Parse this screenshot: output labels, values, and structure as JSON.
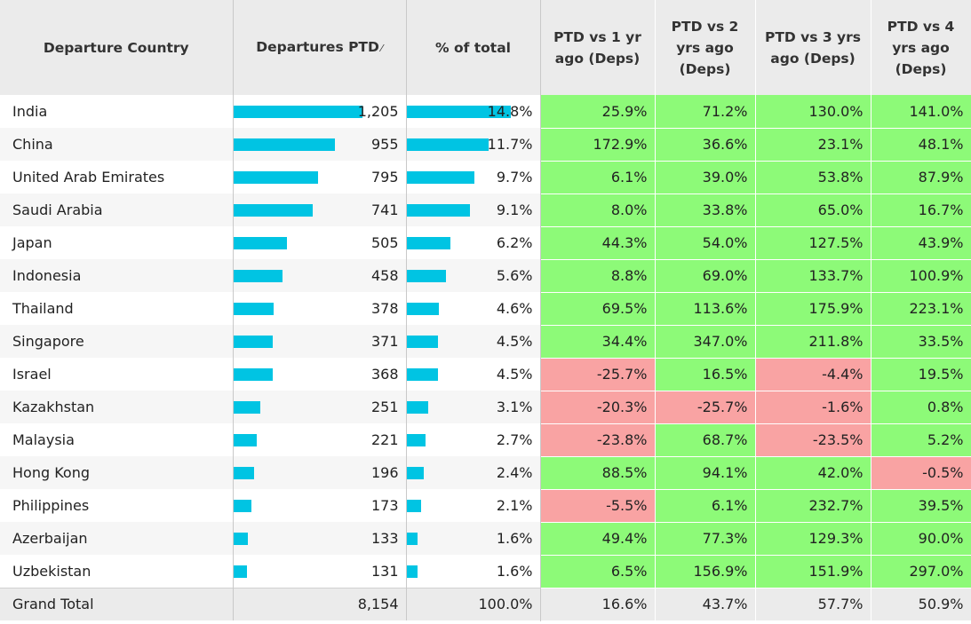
{
  "chart_data": {
    "type": "table",
    "columns": {
      "country": "Departure Country",
      "departures": "Departures PTD",
      "pct_total": "% of total",
      "vs1": "PTD vs 1 yr ago (Deps)",
      "vs2": "PTD vs 2 yrs ago (Deps)",
      "vs3": "PTD vs 3 yrs ago (Deps)",
      "vs4": "PTD vs 4 yrs ago (Deps)"
    },
    "colors": {
      "bar": "#00c4e3",
      "positive": "#8dfa78",
      "negative": "#f9a3a3",
      "header": "#ebebeb"
    },
    "rows": [
      {
        "country": "India",
        "departures": 1205,
        "departures_label": "1,205",
        "pct": 14.8,
        "pct_label": "14.8%",
        "vs1": "25.9%",
        "vs2": "71.2%",
        "vs3": "130.0%",
        "vs4": "141.0%"
      },
      {
        "country": "China",
        "departures": 955,
        "departures_label": "955",
        "pct": 11.7,
        "pct_label": "11.7%",
        "vs1": "172.9%",
        "vs2": "36.6%",
        "vs3": "23.1%",
        "vs4": "48.1%"
      },
      {
        "country": "United Arab Emirates",
        "departures": 795,
        "departures_label": "795",
        "pct": 9.7,
        "pct_label": "9.7%",
        "vs1": "6.1%",
        "vs2": "39.0%",
        "vs3": "53.8%",
        "vs4": "87.9%"
      },
      {
        "country": "Saudi Arabia",
        "departures": 741,
        "departures_label": "741",
        "pct": 9.1,
        "pct_label": "9.1%",
        "vs1": "8.0%",
        "vs2": "33.8%",
        "vs3": "65.0%",
        "vs4": "16.7%"
      },
      {
        "country": "Japan",
        "departures": 505,
        "departures_label": "505",
        "pct": 6.2,
        "pct_label": "6.2%",
        "vs1": "44.3%",
        "vs2": "54.0%",
        "vs3": "127.5%",
        "vs4": "43.9%"
      },
      {
        "country": "Indonesia",
        "departures": 458,
        "departures_label": "458",
        "pct": 5.6,
        "pct_label": "5.6%",
        "vs1": "8.8%",
        "vs2": "69.0%",
        "vs3": "133.7%",
        "vs4": "100.9%"
      },
      {
        "country": "Thailand",
        "departures": 378,
        "departures_label": "378",
        "pct": 4.6,
        "pct_label": "4.6%",
        "vs1": "69.5%",
        "vs2": "113.6%",
        "vs3": "175.9%",
        "vs4": "223.1%"
      },
      {
        "country": "Singapore",
        "departures": 371,
        "departures_label": "371",
        "pct": 4.5,
        "pct_label": "4.5%",
        "vs1": "34.4%",
        "vs2": "347.0%",
        "vs3": "211.8%",
        "vs4": "33.5%"
      },
      {
        "country": "Israel",
        "departures": 368,
        "departures_label": "368",
        "pct": 4.5,
        "pct_label": "4.5%",
        "vs1": "-25.7%",
        "vs2": "16.5%",
        "vs3": "-4.4%",
        "vs4": "19.5%"
      },
      {
        "country": "Kazakhstan",
        "departures": 251,
        "departures_label": "251",
        "pct": 3.1,
        "pct_label": "3.1%",
        "vs1": "-20.3%",
        "vs2": "-25.7%",
        "vs3": "-1.6%",
        "vs4": "0.8%"
      },
      {
        "country": "Malaysia",
        "departures": 221,
        "departures_label": "221",
        "pct": 2.7,
        "pct_label": "2.7%",
        "vs1": "-23.8%",
        "vs2": "68.7%",
        "vs3": "-23.5%",
        "vs4": "5.2%"
      },
      {
        "country": "Hong Kong",
        "departures": 196,
        "departures_label": "196",
        "pct": 2.4,
        "pct_label": "2.4%",
        "vs1": "88.5%",
        "vs2": "94.1%",
        "vs3": "42.0%",
        "vs4": "-0.5%"
      },
      {
        "country": "Philippines",
        "departures": 173,
        "departures_label": "173",
        "pct": 2.1,
        "pct_label": "2.1%",
        "vs1": "-5.5%",
        "vs2": "6.1%",
        "vs3": "232.7%",
        "vs4": "39.5%"
      },
      {
        "country": "Azerbaijan",
        "departures": 133,
        "departures_label": "133",
        "pct": 1.6,
        "pct_label": "1.6%",
        "vs1": "49.4%",
        "vs2": "77.3%",
        "vs3": "129.3%",
        "vs4": "90.0%"
      },
      {
        "country": "Uzbekistan",
        "departures": 131,
        "departures_label": "131",
        "pct": 1.6,
        "pct_label": "1.6%",
        "vs1": "6.5%",
        "vs2": "156.9%",
        "vs3": "151.9%",
        "vs4": "297.0%"
      }
    ],
    "total": {
      "country": "Grand Total",
      "departures": "8,154",
      "pct": "100.0%",
      "vs1": "16.6%",
      "vs2": "43.7%",
      "vs3": "57.7%",
      "vs4": "50.9%"
    }
  }
}
